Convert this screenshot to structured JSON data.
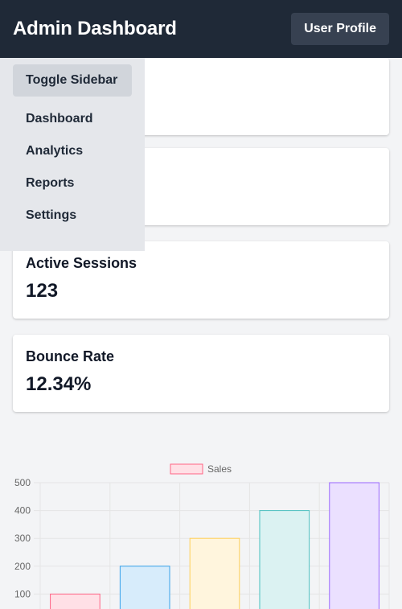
{
  "header": {
    "title": "Admin Dashboard",
    "profile_label": "User Profile"
  },
  "sidebar": {
    "toggle_label": "Toggle Sidebar",
    "items": [
      {
        "label": "Dashboard"
      },
      {
        "label": "Analytics"
      },
      {
        "label": "Reports"
      },
      {
        "label": "Settings"
      }
    ]
  },
  "cards": [
    {
      "title": "",
      "value": ""
    },
    {
      "title": "",
      "value": ""
    },
    {
      "title": "Active Sessions",
      "value": "123"
    },
    {
      "title": "Bounce Rate",
      "value": "12.34%"
    }
  ],
  "colors": {
    "header_bg": "#1f2937",
    "sidebar_bg": "#e5e7eb",
    "toggle_bg": "#d1d5db",
    "profile_btn_bg": "#374151"
  },
  "chart_data": {
    "type": "bar",
    "categories": [
      "",
      "",
      "",
      "",
      ""
    ],
    "series": [
      {
        "name": "Sales",
        "values": [
          100,
          200,
          300,
          400,
          500
        ]
      }
    ],
    "bar_colors": [
      {
        "fill": "#ffe0e6",
        "stroke": "#ff6384"
      },
      {
        "fill": "#d7ecfb",
        "stroke": "#36a2eb"
      },
      {
        "fill": "#fff5dd",
        "stroke": "#ffce56"
      },
      {
        "fill": "#dbf2f2",
        "stroke": "#4bc0c0"
      },
      {
        "fill": "#ebe0ff",
        "stroke": "#9966ff"
      }
    ],
    "yticks": [
      100,
      200,
      300,
      400,
      500
    ],
    "ylim": [
      0,
      500
    ],
    "grid": true,
    "legend": "top-center",
    "title": "",
    "xlabel": "",
    "ylabel": ""
  }
}
